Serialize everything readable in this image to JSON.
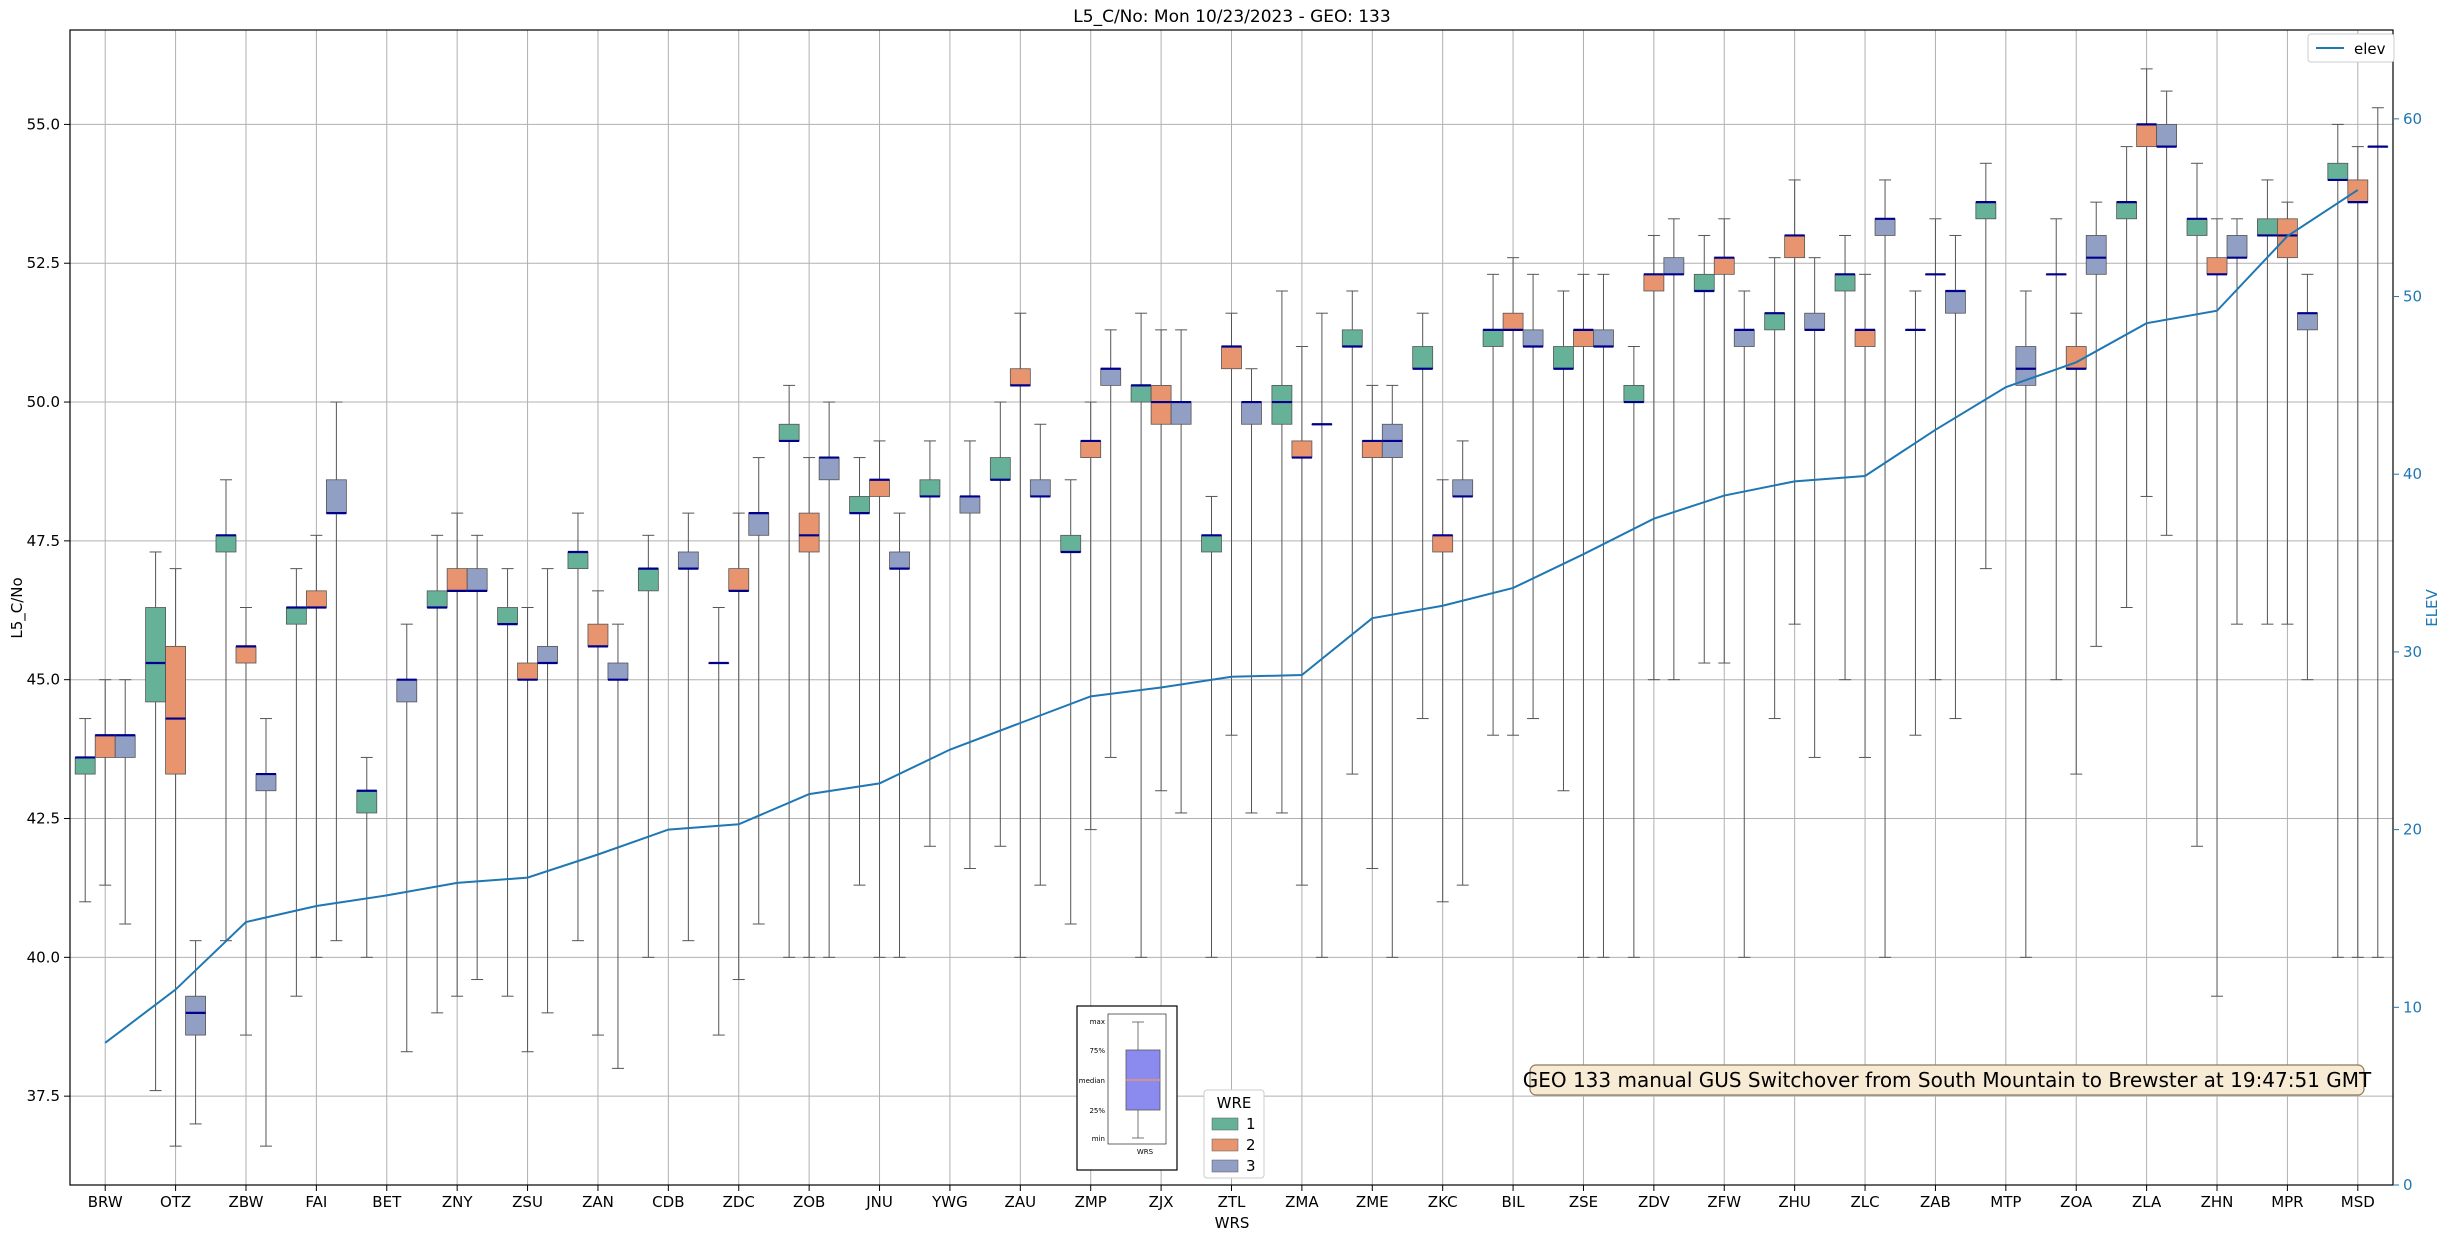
{
  "chart_data": {
    "type": "box",
    "title": "L5_C/No: Mon 10/23/2023 - GEO: 133",
    "xlabel": "WRS",
    "ylabel": "L5_C/No",
    "ylabel_right": "ELEV",
    "ylim": [
      35.9,
      56.7
    ],
    "ylim_right": [
      0,
      65
    ],
    "yticks": [
      37.5,
      40.0,
      42.5,
      45.0,
      47.5,
      50.0,
      52.5,
      55.0
    ],
    "yticks_right": [
      0,
      10,
      20,
      30,
      40,
      50,
      60
    ],
    "grid": true,
    "categories": [
      "BRW",
      "OTZ",
      "ZBW",
      "FAI",
      "BET",
      "ZNY",
      "ZSU",
      "ZAN",
      "CDB",
      "ZDC",
      "ZOB",
      "JNU",
      "YWG",
      "ZAU",
      "ZMP",
      "ZJX",
      "ZTL",
      "ZMA",
      "ZME",
      "ZKC",
      "BIL",
      "ZSE",
      "ZDV",
      "ZFW",
      "ZHU",
      "ZLC",
      "ZAB",
      "MTP",
      "ZOA",
      "ZLA",
      "ZHN",
      "MPR",
      "MSD"
    ],
    "series": [
      {
        "name": "1",
        "color": "#66b298",
        "boxes": [
          {
            "min": 41.0,
            "q1": 43.3,
            "med": 43.6,
            "q3": 43.6,
            "max": 44.3
          },
          {
            "min": 37.6,
            "q1": 44.6,
            "med": 45.3,
            "q3": 46.3,
            "max": 47.3
          },
          {
            "min": 40.3,
            "q1": 47.3,
            "med": 47.6,
            "q3": 47.6,
            "max": 48.6
          },
          {
            "min": 39.3,
            "q1": 46.0,
            "med": 46.3,
            "q3": 46.3,
            "max": 47.0
          },
          {
            "min": 40.0,
            "q1": 42.6,
            "med": 43.0,
            "q3": 43.0,
            "max": 43.6
          },
          {
            "min": 39.0,
            "q1": 46.3,
            "med": 46.3,
            "q3": 46.6,
            "max": 47.6
          },
          {
            "min": 39.3,
            "q1": 46.0,
            "med": 46.0,
            "q3": 46.3,
            "max": 47.0
          },
          {
            "min": 40.3,
            "q1": 47.0,
            "med": 47.3,
            "q3": 47.3,
            "max": 48.0
          },
          {
            "min": 40.0,
            "q1": 46.6,
            "med": 47.0,
            "q3": 47.0,
            "max": 47.6
          },
          {
            "min": 38.6,
            "q1": 45.3,
            "med": 45.3,
            "q3": 45.3,
            "max": 46.3
          },
          {
            "min": 40.0,
            "q1": 49.3,
            "med": 49.3,
            "q3": 49.6,
            "max": 50.3
          },
          {
            "min": 41.3,
            "q1": 48.0,
            "med": 48.0,
            "q3": 48.3,
            "max": 49.0
          },
          {
            "min": 42.0,
            "q1": 48.3,
            "med": 48.3,
            "q3": 48.6,
            "max": 49.3
          },
          {
            "min": 42.0,
            "q1": 48.6,
            "med": 48.6,
            "q3": 49.0,
            "max": 50.0
          },
          {
            "min": 40.6,
            "q1": 47.3,
            "med": 47.3,
            "q3": 47.6,
            "max": 48.6
          },
          {
            "min": 40.0,
            "q1": 50.0,
            "med": 50.3,
            "q3": 50.3,
            "max": 51.6
          },
          {
            "min": 40.0,
            "q1": 47.3,
            "med": 47.6,
            "q3": 47.6,
            "max": 48.3
          },
          {
            "min": 42.6,
            "q1": 49.6,
            "med": 50.0,
            "q3": 50.3,
            "max": 52.0
          },
          {
            "min": 43.3,
            "q1": 51.0,
            "med": 51.0,
            "q3": 51.3,
            "max": 52.0
          },
          {
            "min": 44.3,
            "q1": 50.6,
            "med": 50.6,
            "q3": 51.0,
            "max": 51.6
          },
          {
            "min": 44.0,
            "q1": 51.0,
            "med": 51.3,
            "q3": 51.3,
            "max": 52.3
          },
          {
            "min": 43.0,
            "q1": 50.6,
            "med": 50.6,
            "q3": 51.0,
            "max": 52.0
          },
          {
            "min": 40.0,
            "q1": 50.0,
            "med": 50.0,
            "q3": 50.3,
            "max": 51.0
          },
          {
            "min": 45.3,
            "q1": 52.0,
            "med": 52.0,
            "q3": 52.3,
            "max": 53.0
          },
          {
            "min": 44.3,
            "q1": 51.3,
            "med": 51.6,
            "q3": 51.6,
            "max": 52.6
          },
          {
            "min": 45.0,
            "q1": 52.0,
            "med": 52.3,
            "q3": 52.3,
            "max": 53.0
          },
          {
            "min": 44.0,
            "q1": 51.3,
            "med": 51.3,
            "q3": 51.3,
            "max": 52.0
          },
          {
            "min": 47.0,
            "q1": 53.3,
            "med": 53.6,
            "q3": 53.6,
            "max": 54.3
          },
          {
            "min": 45.0,
            "q1": 52.3,
            "med": 52.3,
            "q3": 52.3,
            "max": 53.3
          },
          {
            "min": 46.3,
            "q1": 53.3,
            "med": 53.6,
            "q3": 53.6,
            "max": 54.6
          },
          {
            "min": 42.0,
            "q1": 53.0,
            "med": 53.3,
            "q3": 53.3,
            "max": 54.3
          },
          {
            "min": 46.0,
            "q1": 53.0,
            "med": 53.0,
            "q3": 53.3,
            "max": 54.0
          },
          {
            "min": 40.0,
            "q1": 54.0,
            "med": 54.0,
            "q3": 54.3,
            "max": 55.0
          }
        ]
      },
      {
        "name": "2",
        "color": "#e8956f",
        "boxes": [
          {
            "min": 41.3,
            "q1": 43.6,
            "med": 44.0,
            "q3": 44.0,
            "max": 45.0
          },
          {
            "min": 36.6,
            "q1": 43.3,
            "med": 44.3,
            "q3": 45.6,
            "max": 47.0
          },
          {
            "min": 38.6,
            "q1": 45.3,
            "med": 45.6,
            "q3": 45.6,
            "max": 46.3
          },
          {
            "min": 40.0,
            "q1": 46.3,
            "med": 46.3,
            "q3": 46.6,
            "max": 47.6
          },
          null,
          {
            "min": 39.3,
            "q1": 46.6,
            "med": 46.6,
            "q3": 47.0,
            "max": 48.0
          },
          {
            "min": 38.3,
            "q1": 45.0,
            "med": 45.0,
            "q3": 45.3,
            "max": 46.3
          },
          {
            "min": 38.6,
            "q1": 45.6,
            "med": 45.6,
            "q3": 46.0,
            "max": 46.6
          },
          null,
          {
            "min": 39.6,
            "q1": 46.6,
            "med": 46.6,
            "q3": 47.0,
            "max": 48.0
          },
          {
            "min": 40.0,
            "q1": 47.3,
            "med": 47.6,
            "q3": 48.0,
            "max": 49.0
          },
          {
            "min": 40.0,
            "q1": 48.3,
            "med": 48.6,
            "q3": 48.6,
            "max": 49.3
          },
          null,
          {
            "min": 40.0,
            "q1": 50.3,
            "med": 50.3,
            "q3": 50.6,
            "max": 51.6
          },
          {
            "min": 42.3,
            "q1": 49.0,
            "med": 49.3,
            "q3": 49.3,
            "max": 50.0
          },
          {
            "min": 43.0,
            "q1": 49.6,
            "med": 50.0,
            "q3": 50.3,
            "max": 51.3
          },
          {
            "min": 44.0,
            "q1": 50.6,
            "med": 51.0,
            "q3": 51.0,
            "max": 51.6
          },
          {
            "min": 41.3,
            "q1": 49.0,
            "med": 49.0,
            "q3": 49.3,
            "max": 51.0
          },
          {
            "min": 41.6,
            "q1": 49.0,
            "med": 49.3,
            "q3": 49.3,
            "max": 50.3
          },
          {
            "min": 41.0,
            "q1": 47.3,
            "med": 47.6,
            "q3": 47.6,
            "max": 48.6
          },
          {
            "min": 44.0,
            "q1": 51.3,
            "med": 51.3,
            "q3": 51.6,
            "max": 52.6
          },
          {
            "min": 40.0,
            "q1": 51.0,
            "med": 51.3,
            "q3": 51.3,
            "max": 52.3
          },
          {
            "min": 45.0,
            "q1": 52.0,
            "med": 52.3,
            "q3": 52.3,
            "max": 53.0
          },
          {
            "min": 45.3,
            "q1": 52.3,
            "med": 52.6,
            "q3": 52.6,
            "max": 53.3
          },
          {
            "min": 46.0,
            "q1": 52.6,
            "med": 53.0,
            "q3": 53.0,
            "max": 54.0
          },
          {
            "min": 43.6,
            "q1": 51.0,
            "med": 51.3,
            "q3": 51.3,
            "max": 52.3
          },
          {
            "min": 45.0,
            "q1": 52.3,
            "med": 52.3,
            "q3": 52.3,
            "max": 53.3
          },
          null,
          {
            "min": 43.3,
            "q1": 50.6,
            "med": 50.6,
            "q3": 51.0,
            "max": 51.6
          },
          {
            "min": 48.3,
            "q1": 54.6,
            "med": 55.0,
            "q3": 55.0,
            "max": 56.0
          },
          {
            "min": 39.3,
            "q1": 52.3,
            "med": 52.3,
            "q3": 52.6,
            "max": 53.3
          },
          {
            "min": 46.0,
            "q1": 52.6,
            "med": 53.0,
            "q3": 53.3,
            "max": 53.6
          },
          {
            "min": 40.0,
            "q1": 53.6,
            "med": 53.6,
            "q3": 54.0,
            "max": 54.6
          }
        ]
      },
      {
        "name": "3",
        "color": "#929fc5",
        "boxes": [
          {
            "min": 40.6,
            "q1": 43.6,
            "med": 44.0,
            "q3": 44.0,
            "max": 45.0
          },
          {
            "min": 37.0,
            "q1": 38.6,
            "med": 39.0,
            "q3": 39.3,
            "max": 40.3
          },
          {
            "min": 36.6,
            "q1": 43.0,
            "med": 43.3,
            "q3": 43.3,
            "max": 44.3
          },
          {
            "min": 40.3,
            "q1": 48.0,
            "med": 48.0,
            "q3": 48.6,
            "max": 50.0
          },
          {
            "min": 38.3,
            "q1": 44.6,
            "med": 45.0,
            "q3": 45.0,
            "max": 46.0
          },
          {
            "min": 39.6,
            "q1": 46.6,
            "med": 46.6,
            "q3": 47.0,
            "max": 47.6
          },
          {
            "min": 39.0,
            "q1": 45.3,
            "med": 45.3,
            "q3": 45.6,
            "max": 47.0
          },
          {
            "min": 38.0,
            "q1": 45.0,
            "med": 45.0,
            "q3": 45.3,
            "max": 46.0
          },
          {
            "min": 40.3,
            "q1": 47.0,
            "med": 47.0,
            "q3": 47.3,
            "max": 48.0
          },
          {
            "min": 40.6,
            "q1": 47.6,
            "med": 48.0,
            "q3": 48.0,
            "max": 49.0
          },
          {
            "min": 40.0,
            "q1": 48.6,
            "med": 49.0,
            "q3": 49.0,
            "max": 50.0
          },
          {
            "min": 40.0,
            "q1": 47.0,
            "med": 47.0,
            "q3": 47.3,
            "max": 48.0
          },
          {
            "min": 41.6,
            "q1": 48.0,
            "med": 48.3,
            "q3": 48.3,
            "max": 49.3
          },
          {
            "min": 41.3,
            "q1": 48.3,
            "med": 48.3,
            "q3": 48.6,
            "max": 49.6
          },
          {
            "min": 43.6,
            "q1": 50.3,
            "med": 50.6,
            "q3": 50.6,
            "max": 51.3
          },
          {
            "min": 42.6,
            "q1": 49.6,
            "med": 50.0,
            "q3": 50.0,
            "max": 51.3
          },
          {
            "min": 42.6,
            "q1": 49.6,
            "med": 50.0,
            "q3": 50.0,
            "max": 50.6
          },
          {
            "min": 40.0,
            "q1": 49.6,
            "med": 49.6,
            "q3": 49.6,
            "max": 51.6
          },
          {
            "min": 40.0,
            "q1": 49.0,
            "med": 49.3,
            "q3": 49.6,
            "max": 50.3
          },
          {
            "min": 41.3,
            "q1": 48.3,
            "med": 48.3,
            "q3": 48.6,
            "max": 49.3
          },
          {
            "min": 44.3,
            "q1": 51.0,
            "med": 51.0,
            "q3": 51.3,
            "max": 52.3
          },
          {
            "min": 40.0,
            "q1": 51.0,
            "med": 51.0,
            "q3": 51.3,
            "max": 52.3
          },
          {
            "min": 45.0,
            "q1": 52.3,
            "med": 52.3,
            "q3": 52.6,
            "max": 53.3
          },
          {
            "min": 40.0,
            "q1": 51.0,
            "med": 51.3,
            "q3": 51.3,
            "max": 52.0
          },
          {
            "min": 43.6,
            "q1": 51.3,
            "med": 51.3,
            "q3": 51.6,
            "max": 52.6
          },
          {
            "min": 40.0,
            "q1": 53.0,
            "med": 53.3,
            "q3": 53.3,
            "max": 54.0
          },
          {
            "min": 44.3,
            "q1": 51.6,
            "med": 52.0,
            "q3": 52.0,
            "max": 53.0
          },
          {
            "min": 40.0,
            "q1": 50.3,
            "med": 50.6,
            "q3": 51.0,
            "max": 52.0
          },
          {
            "min": 45.6,
            "q1": 52.3,
            "med": 52.6,
            "q3": 53.0,
            "max": 53.6
          },
          {
            "min": 47.6,
            "q1": 54.6,
            "med": 54.6,
            "q3": 55.0,
            "max": 55.6
          },
          {
            "min": 46.0,
            "q1": 52.6,
            "med": 52.6,
            "q3": 53.0,
            "max": 53.3
          },
          {
            "min": 45.0,
            "q1": 51.3,
            "med": 51.6,
            "q3": 51.6,
            "max": 52.3
          },
          {
            "min": 40.0,
            "q1": 54.6,
            "med": 54.6,
            "q3": 54.6,
            "max": 55.3
          }
        ]
      }
    ],
    "median_color": "#00008b",
    "elev_series": {
      "name": "elev",
      "color": "#1f77b4",
      "values": [
        8.0,
        11.0,
        14.8,
        15.7,
        16.3,
        17.0,
        17.3,
        18.6,
        20.0,
        20.3,
        22.0,
        22.6,
        24.5,
        26.0,
        27.5,
        28.0,
        28.6,
        28.7,
        31.9,
        32.6,
        33.6,
        35.5,
        37.5,
        38.8,
        39.6,
        39.9,
        42.5,
        44.9,
        46.3,
        48.5,
        49.2,
        53.4,
        56.0
      ]
    },
    "legend_elev": {
      "placement": "top-right",
      "label": "elev"
    },
    "legend_wre": {
      "title": "WRE",
      "labels": [
        "1",
        "2",
        "3"
      ]
    },
    "annotation": "GEO 133 manual GUS Switchover from South Mountain to Brewster at 19:47:51 GMT",
    "inset": {
      "labels": [
        "max",
        "75%",
        "median",
        "25%",
        "min"
      ],
      "xlabel": "WRS"
    }
  }
}
